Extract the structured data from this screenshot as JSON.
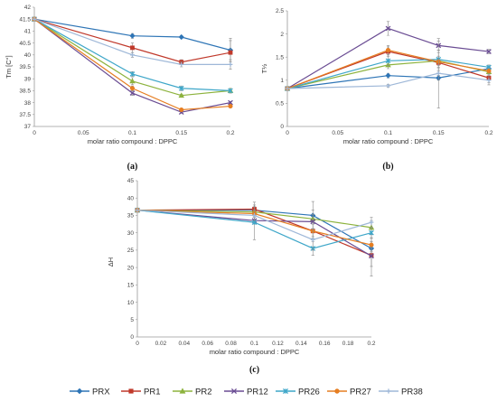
{
  "chart_data": [
    {
      "type": "line",
      "panel_label": "(a)",
      "xlabel": "molar ratio compound : DPPC",
      "ylabel": "Tm [C°]",
      "xlim": [
        0,
        0.2
      ],
      "ylim": [
        37,
        42
      ],
      "xticks": [
        "0",
        "0.05",
        "0.1",
        "0.15",
        "0.2"
      ],
      "yticks": [
        "37",
        "37.5",
        "38",
        "38.5",
        "39",
        "39.5",
        "40",
        "40.5",
        "41",
        "41.5",
        "42"
      ],
      "x": [
        0,
        0.1,
        0.15,
        0.2
      ],
      "grid": false,
      "series": [
        {
          "name": "PRX",
          "color": "#2e75b6",
          "marker": "diamond",
          "values": [
            41.5,
            40.8,
            40.75,
            40.2
          ],
          "errors": [
            0,
            0.1,
            0.05,
            0.5
          ]
        },
        {
          "name": "PR1",
          "color": "#c0392b",
          "marker": "square",
          "values": [
            41.5,
            40.3,
            39.7,
            40.1
          ],
          "errors": [
            0,
            0.2,
            0.1,
            0.5
          ]
        },
        {
          "name": "PR2",
          "color": "#8db33e",
          "marker": "triangle",
          "values": [
            41.5,
            38.9,
            38.3,
            38.5
          ],
          "errors": [
            0,
            0.15,
            0.05,
            0.1
          ]
        },
        {
          "name": "PR12",
          "color": "#6a4c93",
          "marker": "x",
          "values": [
            41.5,
            38.4,
            37.6,
            38.0
          ],
          "errors": [
            0,
            0.1,
            0.05,
            0.05
          ]
        },
        {
          "name": "PR26",
          "color": "#3fa7c9",
          "marker": "asterisk",
          "values": [
            41.5,
            39.2,
            38.6,
            38.5
          ],
          "errors": [
            0,
            0.1,
            0.1,
            0.05
          ]
        },
        {
          "name": "PR27",
          "color": "#e67e22",
          "marker": "circle",
          "values": [
            41.5,
            38.6,
            37.7,
            37.85
          ],
          "errors": [
            0,
            0.1,
            0.05,
            0.05
          ]
        },
        {
          "name": "PR38",
          "color": "#9fb8d8",
          "marker": "plus",
          "values": [
            41.5,
            40.0,
            39.6,
            39.6
          ],
          "errors": [
            0,
            0.1,
            0.1,
            0.2
          ]
        }
      ]
    },
    {
      "type": "line",
      "panel_label": "(b)",
      "xlabel": "molar ratio compound : DPPC",
      "ylabel": "T½",
      "xlim": [
        0,
        0.2
      ],
      "ylim": [
        0,
        2.5
      ],
      "xticks": [
        "0",
        "0.05",
        "0.1",
        "0.15",
        "0.2"
      ],
      "yticks": [
        "0",
        "0.5",
        "1",
        "1.5",
        "2",
        "2.5"
      ],
      "x": [
        0,
        0.1,
        0.15,
        0.2
      ],
      "grid": false,
      "series": [
        {
          "name": "PRX",
          "color": "#2e75b6",
          "marker": "diamond",
          "values": [
            0.82,
            1.1,
            1.05,
            1.25
          ],
          "errors": [
            0,
            0.05,
            0.05,
            0.05
          ]
        },
        {
          "name": "PR1",
          "color": "#c0392b",
          "marker": "square",
          "values": [
            0.82,
            1.62,
            1.38,
            1.05
          ],
          "errors": [
            0,
            0.1,
            0.1,
            0.1
          ]
        },
        {
          "name": "PR2",
          "color": "#8db33e",
          "marker": "triangle",
          "values": [
            0.82,
            1.33,
            1.42,
            1.18
          ],
          "errors": [
            0,
            0.08,
            0.1,
            0.05
          ]
        },
        {
          "name": "PR12",
          "color": "#6a4c93",
          "marker": "x",
          "values": [
            0.82,
            2.12,
            1.75,
            1.62
          ],
          "errors": [
            0,
            0.15,
            0.1,
            0.05
          ]
        },
        {
          "name": "PR26",
          "color": "#3fa7c9",
          "marker": "asterisk",
          "values": [
            0.82,
            1.42,
            1.45,
            1.28
          ],
          "errors": [
            0,
            0.1,
            0.2,
            0.05
          ]
        },
        {
          "name": "PR27",
          "color": "#e67e22",
          "marker": "circle",
          "values": [
            0.82,
            1.65,
            1.4,
            1.2
          ],
          "errors": [
            0,
            0.1,
            0.2,
            0.05
          ]
        },
        {
          "name": "PR38",
          "color": "#9fb8d8",
          "marker": "plus",
          "values": [
            0.82,
            0.88,
            1.15,
            1.0
          ],
          "errors": [
            0,
            0.03,
            0.75,
            0.1
          ]
        }
      ]
    },
    {
      "type": "line",
      "panel_label": "(c)",
      "xlabel": "molar ratio compound : DPPC",
      "ylabel": "ΔH",
      "xlim": [
        0,
        0.2
      ],
      "ylim": [
        0,
        45
      ],
      "xticks": [
        "0",
        "0.02",
        "0.04",
        "0.06",
        "0.08",
        "0.1",
        "0.12",
        "0.14",
        "0.16",
        "0.18",
        "0.2"
      ],
      "yticks": [
        "0",
        "5",
        "10",
        "15",
        "20",
        "25",
        "30",
        "35",
        "40",
        "45"
      ],
      "x": [
        0,
        0.1,
        0.15,
        0.2
      ],
      "grid": false,
      "series": [
        {
          "name": "PRX",
          "color": "#2e75b6",
          "marker": "diamond",
          "values": [
            36.5,
            36.5,
            35.0,
            25.5
          ],
          "errors": [
            0,
            1.0,
            1.5,
            2.0
          ]
        },
        {
          "name": "PR1",
          "color": "#c0392b",
          "marker": "square",
          "values": [
            36.5,
            36.8,
            30.5,
            23.5
          ],
          "errors": [
            0,
            2.0,
            2.0,
            6.0
          ]
        },
        {
          "name": "PR2",
          "color": "#8db33e",
          "marker": "triangle",
          "values": [
            36.5,
            36.0,
            34.0,
            31.5
          ],
          "errors": [
            0,
            1.5,
            5.0,
            2.0
          ]
        },
        {
          "name": "PR12",
          "color": "#6a4c93",
          "marker": "x",
          "values": [
            36.5,
            33.5,
            33.2,
            23.3
          ],
          "errors": [
            0,
            1.0,
            2.0,
            3.0
          ]
        },
        {
          "name": "PR26",
          "color": "#3fa7c9",
          "marker": "asterisk",
          "values": [
            36.5,
            33.0,
            25.5,
            30.0
          ],
          "errors": [
            0,
            5.0,
            2.0,
            1.5
          ]
        },
        {
          "name": "PR27",
          "color": "#e67e22",
          "marker": "circle",
          "values": [
            36.5,
            35.5,
            30.5,
            26.5
          ],
          "errors": [
            0,
            1.0,
            2.5,
            2.0
          ]
        },
        {
          "name": "PR38",
          "color": "#9fb8d8",
          "marker": "plus",
          "values": [
            36.5,
            35.0,
            28.0,
            33.0
          ],
          "errors": [
            0,
            1.5,
            3.0,
            1.5
          ]
        }
      ]
    }
  ],
  "legend": {
    "placement": "bottom",
    "items": [
      {
        "name": "PRX",
        "color": "#2e75b6",
        "marker": "diamond"
      },
      {
        "name": "PR1",
        "color": "#c0392b",
        "marker": "square"
      },
      {
        "name": "PR2",
        "color": "#8db33e",
        "marker": "triangle"
      },
      {
        "name": "PR12",
        "color": "#6a4c93",
        "marker": "x"
      },
      {
        "name": "PR26",
        "color": "#3fa7c9",
        "marker": "asterisk"
      },
      {
        "name": "PR27",
        "color": "#e67e22",
        "marker": "circle"
      },
      {
        "name": "PR38",
        "color": "#9fb8d8",
        "marker": "plus"
      }
    ]
  }
}
